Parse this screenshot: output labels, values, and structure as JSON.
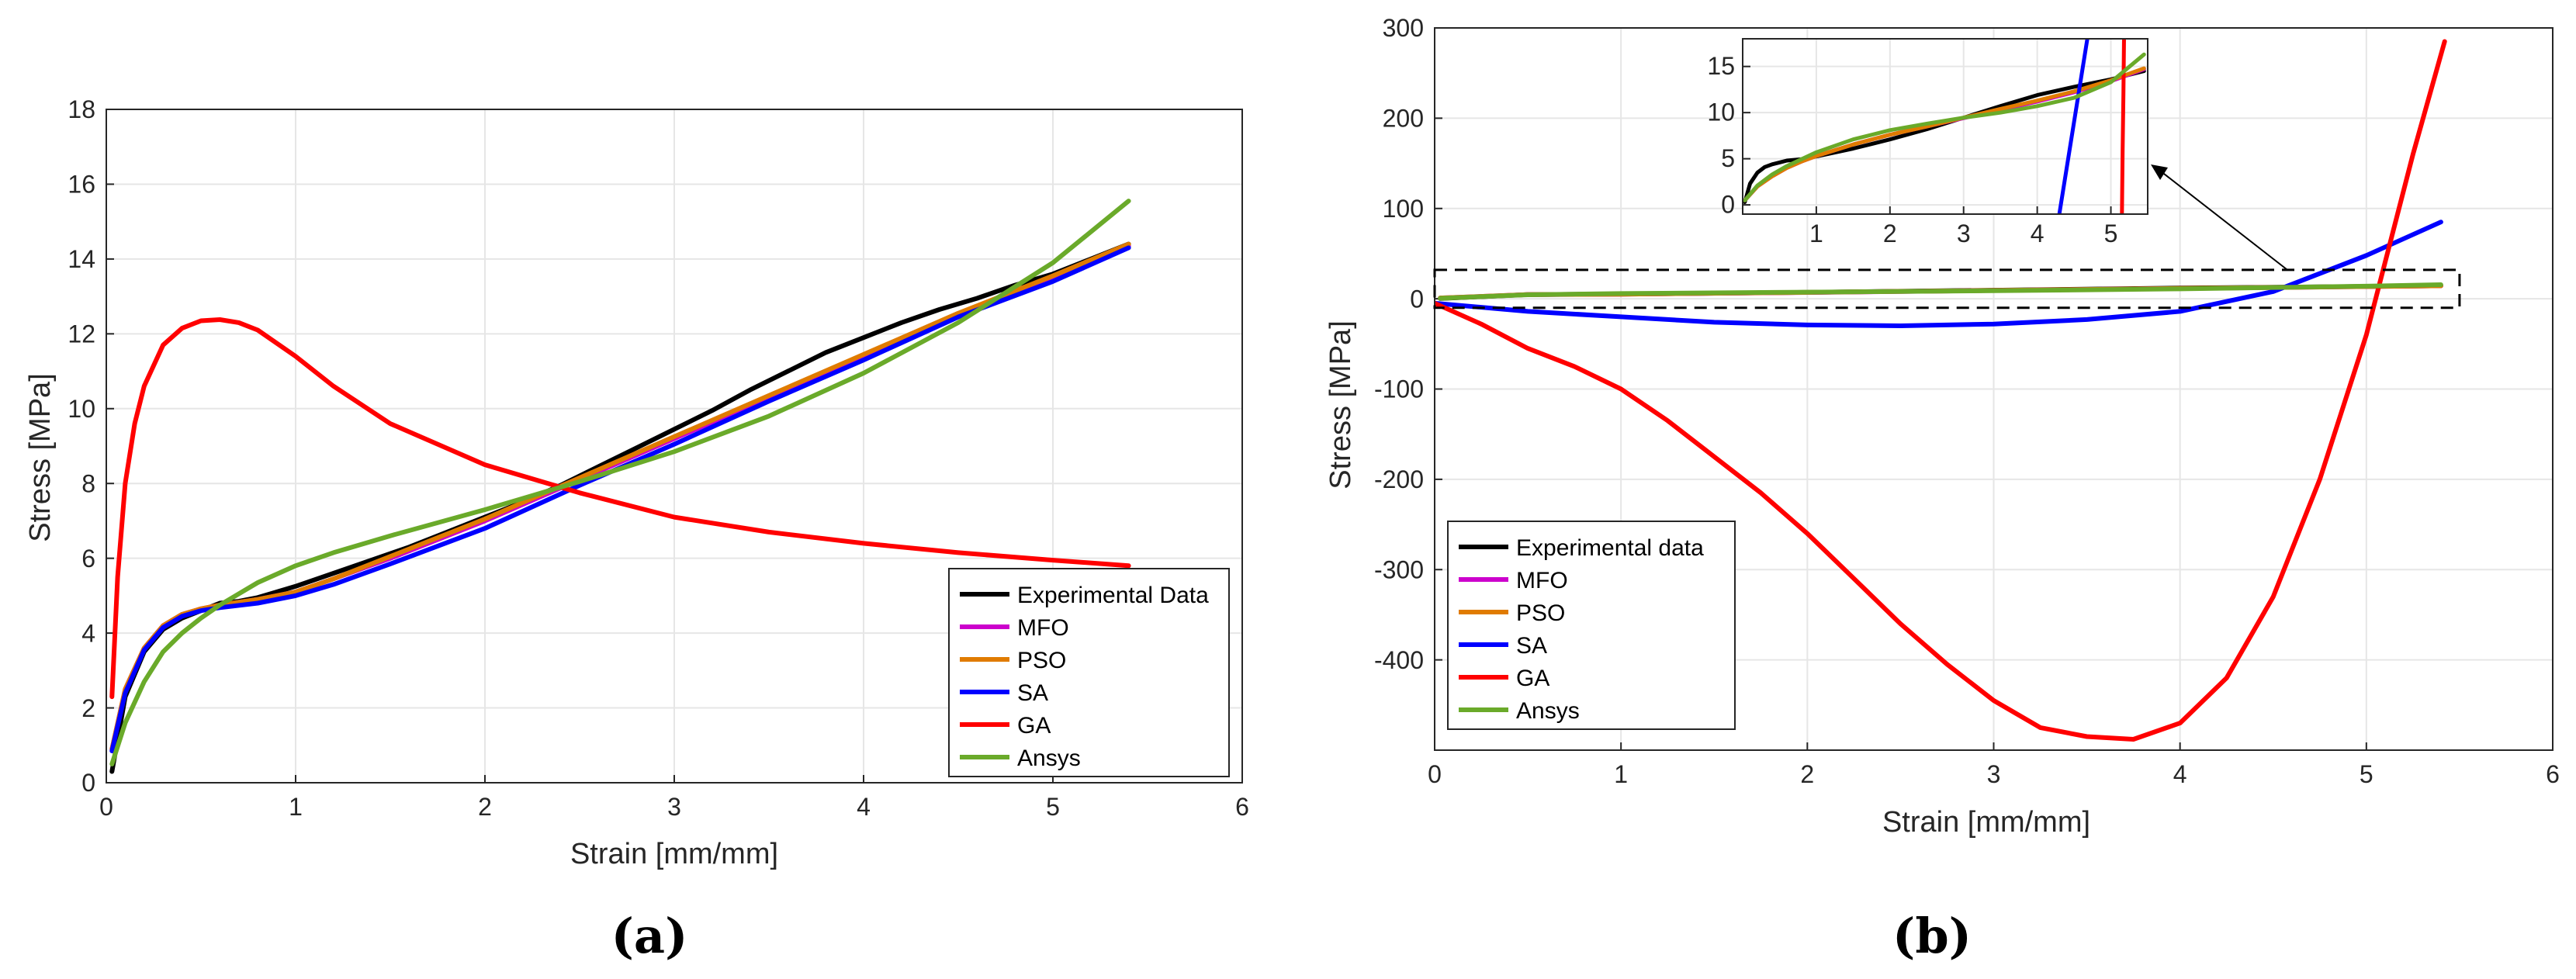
{
  "colors": {
    "experimental": "#000000",
    "mfo": "#cc00cc",
    "pso": "#e07b00",
    "sa": "#0000ff",
    "ga": "#ff0000",
    "ansys": "#6aaa2a"
  },
  "chart_data": [
    {
      "type": "line",
      "panel_label": "(a)",
      "title": "",
      "xlabel": "Strain [mm/mm]",
      "ylabel": "Stress [MPa]",
      "xlim": [
        0,
        6
      ],
      "ylim": [
        0,
        18
      ],
      "xticks": [
        "0",
        "1",
        "2",
        "3",
        "4",
        "5",
        "6"
      ],
      "yticks": [
        "0",
        "2",
        "4",
        "6",
        "8",
        "10",
        "12",
        "14",
        "16",
        "18"
      ],
      "grid": true,
      "legend_position": "bottom-right",
      "series": [
        {
          "name": "Experimental Data",
          "color_key": "experimental",
          "x": [
            0.03,
            0.1,
            0.2,
            0.3,
            0.4,
            0.5,
            0.6,
            0.7,
            0.8,
            1.0,
            1.2,
            1.4,
            1.6,
            1.8,
            2.0,
            2.2,
            2.4,
            2.6,
            2.8,
            3.0,
            3.2,
            3.4,
            3.6,
            3.8,
            4.0,
            4.2,
            4.4,
            4.6,
            4.8,
            5.0,
            5.2,
            5.4
          ],
          "y": [
            0.3,
            2.3,
            3.5,
            4.1,
            4.4,
            4.6,
            4.8,
            4.85,
            4.95,
            5.25,
            5.6,
            5.95,
            6.3,
            6.7,
            7.1,
            7.5,
            7.95,
            8.45,
            8.95,
            9.45,
            9.95,
            10.5,
            11.0,
            11.5,
            11.9,
            12.3,
            12.65,
            12.95,
            13.3,
            13.6,
            14.0,
            14.4
          ]
        },
        {
          "name": "MFO",
          "color_key": "mfo",
          "x": [
            0.03,
            0.1,
            0.2,
            0.3,
            0.4,
            0.5,
            0.6,
            0.8,
            1.0,
            1.2,
            1.5,
            2.0,
            2.5,
            3.0,
            3.5,
            4.0,
            4.5,
            5.0,
            5.4
          ],
          "y": [
            0.9,
            2.5,
            3.6,
            4.2,
            4.5,
            4.65,
            4.75,
            4.9,
            5.1,
            5.45,
            6.0,
            7.0,
            8.1,
            9.2,
            10.3,
            11.4,
            12.5,
            13.5,
            14.35
          ]
        },
        {
          "name": "PSO",
          "color_key": "pso",
          "x": [
            0.03,
            0.1,
            0.2,
            0.3,
            0.4,
            0.5,
            0.6,
            0.8,
            1.0,
            1.2,
            1.5,
            2.0,
            2.5,
            3.0,
            3.5,
            4.0,
            4.5,
            5.0,
            5.4
          ],
          "y": [
            0.9,
            2.5,
            3.6,
            4.2,
            4.5,
            4.65,
            4.75,
            4.9,
            5.1,
            5.45,
            6.05,
            7.05,
            8.15,
            9.25,
            10.35,
            11.45,
            12.55,
            13.55,
            14.4
          ]
        },
        {
          "name": "SA",
          "color_key": "sa",
          "x": [
            0.03,
            0.1,
            0.2,
            0.3,
            0.4,
            0.5,
            0.6,
            0.8,
            1.0,
            1.2,
            1.5,
            2.0,
            2.5,
            3.0,
            3.5,
            4.0,
            4.5,
            5.0,
            5.4
          ],
          "y": [
            0.85,
            2.4,
            3.55,
            4.15,
            4.45,
            4.6,
            4.68,
            4.8,
            5.0,
            5.3,
            5.85,
            6.8,
            7.95,
            9.05,
            10.2,
            11.3,
            12.45,
            13.4,
            14.3
          ]
        },
        {
          "name": "GA",
          "color_key": "ga",
          "x": [
            0.03,
            0.06,
            0.1,
            0.15,
            0.2,
            0.3,
            0.4,
            0.5,
            0.6,
            0.7,
            0.8,
            1.0,
            1.2,
            1.5,
            2.0,
            2.5,
            3.0,
            3.5,
            4.0,
            4.5,
            5.0,
            5.4
          ],
          "y": [
            2.3,
            5.5,
            8.0,
            9.6,
            10.6,
            11.7,
            12.15,
            12.35,
            12.38,
            12.3,
            12.1,
            11.4,
            10.6,
            9.6,
            8.5,
            7.75,
            7.1,
            6.7,
            6.4,
            6.15,
            5.95,
            5.8
          ]
        },
        {
          "name": "Ansys",
          "color_key": "ansys",
          "x": [
            0.03,
            0.1,
            0.2,
            0.3,
            0.4,
            0.5,
            0.6,
            0.8,
            1.0,
            1.2,
            1.5,
            2.0,
            2.5,
            3.0,
            3.5,
            4.0,
            4.5,
            5.0,
            5.4
          ],
          "y": [
            0.5,
            1.6,
            2.7,
            3.5,
            4.0,
            4.4,
            4.75,
            5.35,
            5.8,
            6.15,
            6.6,
            7.3,
            8.05,
            8.85,
            9.8,
            10.95,
            12.3,
            13.9,
            15.55
          ]
        }
      ]
    },
    {
      "type": "line",
      "panel_label": "(b)",
      "title": "",
      "xlabel": "Strain [mm/mm]",
      "ylabel": "Stress [MPa]",
      "xlim": [
        0,
        6
      ],
      "ylim": [
        -500,
        300
      ],
      "xticks": [
        "0",
        "1",
        "2",
        "3",
        "4",
        "5",
        "6"
      ],
      "yticks": [
        "-400",
        "-300",
        "-200",
        "-100",
        "0",
        "100",
        "200",
        "300"
      ],
      "grid": true,
      "legend_position": "bottom-left",
      "series": [
        {
          "name": "Experimental data",
          "color_key": "experimental",
          "x": [
            0.03,
            0.5,
            1.0,
            2.0,
            3.0,
            4.0,
            5.0,
            5.4
          ],
          "y": [
            0.3,
            4.7,
            5.2,
            7.1,
            9.5,
            11.9,
            13.6,
            14.4
          ]
        },
        {
          "name": "MFO",
          "color_key": "mfo",
          "x": [
            0.03,
            0.5,
            1.0,
            2.0,
            3.0,
            4.0,
            5.0,
            5.4
          ],
          "y": [
            0.9,
            4.6,
            5.1,
            7.0,
            9.2,
            11.4,
            13.5,
            14.35
          ]
        },
        {
          "name": "PSO",
          "color_key": "pso",
          "x": [
            0.03,
            0.5,
            1.0,
            2.0,
            3.0,
            4.0,
            5.0,
            5.4
          ],
          "y": [
            0.9,
            4.6,
            5.1,
            7.05,
            9.25,
            11.45,
            13.55,
            14.4
          ]
        },
        {
          "name": "SA",
          "color_key": "sa",
          "x": [
            0,
            0.5,
            1.0,
            1.5,
            2.0,
            2.5,
            3.0,
            3.5,
            4.0,
            4.5,
            5.0,
            5.4
          ],
          "y": [
            -5,
            -14,
            -20,
            -26,
            -29,
            -30,
            -28,
            -23,
            -14,
            8,
            48,
            85
          ]
        },
        {
          "name": "GA",
          "color_key": "ga",
          "x": [
            0,
            0.25,
            0.5,
            0.75,
            1.0,
            1.25,
            1.5,
            1.75,
            2.0,
            2.25,
            2.5,
            2.75,
            3.0,
            3.25,
            3.5,
            3.75,
            4.0,
            4.25,
            4.5,
            4.75,
            5.0,
            5.25,
            5.42
          ],
          "y": [
            -5,
            -28,
            -55,
            -75,
            -100,
            -135,
            -175,
            -215,
            -260,
            -310,
            -360,
            -405,
            -445,
            -475,
            -485,
            -488,
            -470,
            -420,
            -330,
            -200,
            -40,
            160,
            285
          ]
        },
        {
          "name": "Ansys",
          "color_key": "ansys",
          "x": [
            0.03,
            0.5,
            1.0,
            2.0,
            3.0,
            4.0,
            5.0,
            5.4
          ],
          "y": [
            0.5,
            4.4,
            5.8,
            7.3,
            8.85,
            10.95,
            13.9,
            15.55
          ]
        }
      ],
      "inset": {
        "xlim": [
          0,
          5.5
        ],
        "ylim": [
          -1,
          18
        ],
        "xticks": [
          "1",
          "2",
          "3",
          "4",
          "5"
        ],
        "yticks": [
          "0",
          "5",
          "10",
          "15"
        ],
        "series": [
          {
            "name": "Experimental data",
            "color_key": "experimental",
            "x": [
              0.03,
              0.1,
              0.2,
              0.3,
              0.4,
              0.5,
              0.6,
              0.8,
              1.0,
              1.5,
              2.0,
              2.5,
              3.0,
              3.5,
              4.0,
              4.5,
              5.0,
              5.45
            ],
            "y": [
              0.3,
              2.3,
              3.5,
              4.1,
              4.4,
              4.6,
              4.8,
              4.95,
              5.25,
              6.1,
              7.1,
              8.2,
              9.45,
              10.7,
              11.9,
              12.8,
              13.6,
              14.5
            ]
          },
          {
            "name": "MFO",
            "color_key": "mfo",
            "x": [
              0.03,
              0.2,
              0.4,
              0.6,
              0.8,
              1.0,
              1.5,
              2.0,
              2.5,
              3.0,
              3.5,
              4.0,
              4.5,
              5.0,
              5.45
            ],
            "y": [
              0.5,
              2.0,
              3.1,
              4.0,
              4.7,
              5.3,
              6.55,
              7.6,
              8.5,
              9.4,
              10.3,
              11.2,
              12.2,
              13.4,
              14.7
            ]
          },
          {
            "name": "PSO",
            "color_key": "pso",
            "x": [
              0.03,
              0.2,
              0.4,
              0.6,
              0.8,
              1.0,
              1.5,
              2.0,
              2.5,
              3.0,
              3.5,
              4.0,
              4.5,
              5.0,
              5.45
            ],
            "y": [
              0.5,
              2.0,
              3.1,
              4.0,
              4.7,
              5.3,
              6.55,
              7.6,
              8.5,
              9.45,
              10.4,
              11.3,
              12.3,
              13.5,
              14.8
            ]
          },
          {
            "name": "SA",
            "color_key": "sa",
            "x": [
              4.3,
              4.4,
              4.5,
              4.6,
              4.7
            ],
            "y": [
              -1,
              4,
              9,
              14,
              19
            ]
          },
          {
            "name": "GA",
            "color_key": "ga",
            "x": [
              5.15,
              5.16,
              5.17,
              5.18
            ],
            "y": [
              -1,
              6,
              12,
              19
            ]
          },
          {
            "name": "Ansys",
            "color_key": "ansys",
            "x": [
              0.03,
              0.2,
              0.4,
              0.6,
              0.8,
              1.0,
              1.5,
              2.0,
              2.5,
              3.0,
              3.5,
              4.0,
              4.5,
              5.0,
              5.45
            ],
            "y": [
              0.5,
              2.1,
              3.3,
              4.2,
              4.95,
              5.7,
              7.1,
              8.1,
              8.8,
              9.45,
              10.0,
              10.7,
              11.6,
              13.3,
              16.3
            ]
          }
        ]
      }
    }
  ]
}
